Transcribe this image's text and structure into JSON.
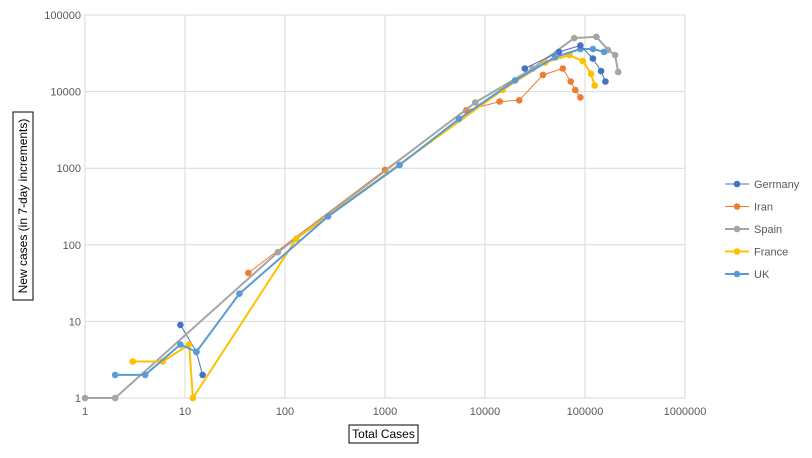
{
  "chart_data": {
    "type": "line",
    "xlabel": "Total Cases",
    "ylabel": "New cases  (in 7-day increments)",
    "x_scale": "log",
    "y_scale": "log",
    "xlim": [
      1,
      1000000
    ],
    "ylim": [
      1,
      100000
    ],
    "x_ticks": [
      "1",
      "10",
      "100",
      "1000",
      "10000",
      "100000",
      "1000000"
    ],
    "y_ticks": [
      "1",
      "10",
      "100",
      "1000",
      "10000",
      "100000"
    ],
    "grid": true,
    "legend_position": "right",
    "series": [
      {
        "name": "Germany",
        "color": "#4472C4",
        "stroke_width": 1,
        "points": [
          [
            9,
            9
          ],
          [
            13,
            4
          ],
          [
            15,
            2
          ]
        ]
      },
      {
        "name": "Iran",
        "color": "#ED7D31",
        "stroke_width": 1,
        "points": [
          [
            43,
            43
          ],
          [
            1000,
            950
          ],
          [
            6500,
            5700
          ],
          [
            14000,
            7400
          ],
          [
            22000,
            7700
          ],
          [
            38000,
            16500
          ],
          [
            60000,
            20000
          ],
          [
            72000,
            13500
          ],
          [
            80000,
            10500
          ],
          [
            90000,
            8400
          ]
        ]
      },
      {
        "name": "Spain",
        "color": "#A5A5A5",
        "stroke_width": 2,
        "points": [
          [
            1,
            1
          ],
          [
            2,
            1
          ],
          [
            85,
            80
          ],
          [
            8000,
            7200
          ],
          [
            30000,
            20000
          ],
          [
            78000,
            50000
          ],
          [
            130000,
            52000
          ],
          [
            170000,
            35000
          ],
          [
            200000,
            30000
          ],
          [
            215000,
            18000
          ]
        ]
      },
      {
        "name": "France",
        "color": "#FFC000",
        "stroke_width": 2,
        "points": [
          [
            3,
            3
          ],
          [
            6,
            3
          ],
          [
            11,
            5
          ],
          [
            12,
            1
          ],
          [
            130,
            120
          ],
          [
            15000,
            10500
          ],
          [
            40000,
            24000
          ],
          [
            70000,
            30000
          ],
          [
            95000,
            25000
          ],
          [
            115000,
            17000
          ],
          [
            125000,
            12000
          ]
        ]
      },
      {
        "name": "UK",
        "color": "#5B9BD5",
        "stroke_width": 2,
        "points": [
          [
            2,
            2
          ],
          [
            4,
            2
          ],
          [
            9,
            5
          ],
          [
            13,
            4
          ],
          [
            35,
            23
          ],
          [
            270,
            235
          ],
          [
            1400,
            1100
          ],
          [
            5500,
            4400
          ],
          [
            20000,
            14000
          ],
          [
            50000,
            28000
          ],
          [
            90000,
            36000
          ],
          [
            120000,
            36000
          ],
          [
            155000,
            33000
          ]
        ]
      }
    ],
    "extra_segments": [
      {
        "series": "Germany",
        "points": [
          [
            25000,
            20000
          ],
          [
            55000,
            33000
          ],
          [
            90000,
            40000
          ],
          [
            120000,
            27000
          ],
          [
            145000,
            18500
          ],
          [
            160000,
            13500
          ]
        ]
      }
    ]
  }
}
